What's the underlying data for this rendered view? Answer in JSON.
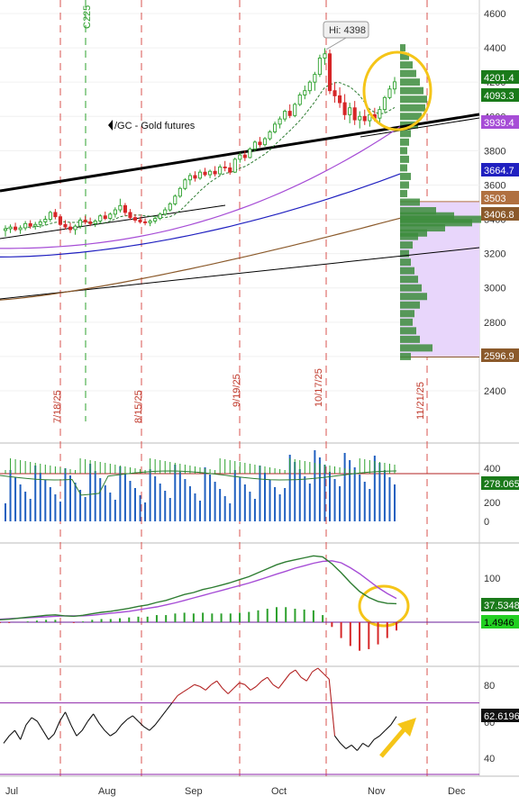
{
  "symbol_label": "/GC - Gold futures",
  "high_label": "Hi: 4398",
  "colors": {
    "bull": "#2ca02c",
    "bear": "#d62728",
    "sma_fast": "#2e7d32",
    "sma_mid": "#a64dd6",
    "sma_slow": "#2020c0",
    "sma_long": "#8b5a2b",
    "trend": "#000000",
    "volume": "#2060c0",
    "highlight": "#f5c518",
    "profile": "#3c8c3c",
    "value_area": "#c8a8f0"
  },
  "price_axis": {
    "ticks": [
      2400,
      2600,
      2800,
      3000,
      3200,
      3400,
      3600,
      3800,
      4000,
      4200,
      4400,
      4600
    ],
    "range": [
      2200,
      4650
    ]
  },
  "price_tags": [
    {
      "value": "4201.4",
      "color": "#1a7a1a"
    },
    {
      "value": "4093.3",
      "color": "#1a7a1a"
    },
    {
      "value": "3939.4",
      "color": "#a64dd6"
    },
    {
      "value": "3664.7",
      "color": "#2020c0"
    },
    {
      "value": "3503",
      "color": "#b07040"
    },
    {
      "value": "3406.8",
      "color": "#8b5a2b"
    },
    {
      "value": "2596.9",
      "color": "#8b5a2b"
    }
  ],
  "date_markers": [
    "7/18/25",
    "8/15/25",
    "9/19/25",
    "10/17/25",
    "11/21/25"
  ],
  "green_marker": "C225",
  "x_axis_labels": [
    "Jul",
    "Aug",
    "Sep",
    "Oct",
    "Nov",
    "Dec"
  ],
  "volume_panel": {
    "ticks": [
      "400",
      "200",
      "0"
    ],
    "tag": "278.065"
  },
  "macd_panel": {
    "ticks": [
      "100"
    ],
    "tags": [
      "37.5348",
      "1.4946"
    ]
  },
  "rsi_panel": {
    "ticks": [
      "80",
      "60",
      "40"
    ],
    "tag": "62.6196"
  },
  "chart_data": {
    "type": "candlestick",
    "title": "/GC - Gold futures",
    "ylim": [
      2200,
      4650
    ],
    "annotation": "Hi: 4398",
    "candles": [
      {
        "o": 3335,
        "h": 3365,
        "l": 3300,
        "c": 3345
      },
      {
        "o": 3345,
        "h": 3370,
        "l": 3320,
        "c": 3355
      },
      {
        "o": 3355,
        "h": 3380,
        "l": 3330,
        "c": 3340
      },
      {
        "o": 3340,
        "h": 3365,
        "l": 3315,
        "c": 3350
      },
      {
        "o": 3350,
        "h": 3390,
        "l": 3335,
        "c": 3375
      },
      {
        "o": 3375,
        "h": 3395,
        "l": 3345,
        "c": 3360
      },
      {
        "o": 3360,
        "h": 3385,
        "l": 3340,
        "c": 3370
      },
      {
        "o": 3370,
        "h": 3400,
        "l": 3350,
        "c": 3385
      },
      {
        "o": 3385,
        "h": 3420,
        "l": 3365,
        "c": 3400
      },
      {
        "o": 3400,
        "h": 3450,
        "l": 3385,
        "c": 3440
      },
      {
        "o": 3440,
        "h": 3460,
        "l": 3400,
        "c": 3415
      },
      {
        "o": 3415,
        "h": 3430,
        "l": 3360,
        "c": 3370
      },
      {
        "o": 3370,
        "h": 3395,
        "l": 3340,
        "c": 3355
      },
      {
        "o": 3355,
        "h": 3380,
        "l": 3320,
        "c": 3340
      },
      {
        "o": 3340,
        "h": 3370,
        "l": 3310,
        "c": 3360
      },
      {
        "o": 3360,
        "h": 3410,
        "l": 3345,
        "c": 3395
      },
      {
        "o": 3395,
        "h": 3420,
        "l": 3370,
        "c": 3385
      },
      {
        "o": 3385,
        "h": 3410,
        "l": 3360,
        "c": 3375
      },
      {
        "o": 3375,
        "h": 3400,
        "l": 3355,
        "c": 3390
      },
      {
        "o": 3390,
        "h": 3430,
        "l": 3380,
        "c": 3420
      },
      {
        "o": 3420,
        "h": 3445,
        "l": 3395,
        "c": 3405
      },
      {
        "o": 3405,
        "h": 3440,
        "l": 3395,
        "c": 3430
      },
      {
        "o": 3430,
        "h": 3470,
        "l": 3410,
        "c": 3455
      },
      {
        "o": 3455,
        "h": 3520,
        "l": 3440,
        "c": 3480
      },
      {
        "o": 3480,
        "h": 3495,
        "l": 3420,
        "c": 3440
      },
      {
        "o": 3440,
        "h": 3460,
        "l": 3395,
        "c": 3410
      },
      {
        "o": 3410,
        "h": 3430,
        "l": 3380,
        "c": 3395
      },
      {
        "o": 3395,
        "h": 3415,
        "l": 3375,
        "c": 3385
      },
      {
        "o": 3385,
        "h": 3405,
        "l": 3365,
        "c": 3380
      },
      {
        "o": 3380,
        "h": 3400,
        "l": 3360,
        "c": 3390
      },
      {
        "o": 3390,
        "h": 3420,
        "l": 3375,
        "c": 3405
      },
      {
        "o": 3405,
        "h": 3440,
        "l": 3395,
        "c": 3430
      },
      {
        "o": 3430,
        "h": 3470,
        "l": 3420,
        "c": 3455
      },
      {
        "o": 3455,
        "h": 3500,
        "l": 3445,
        "c": 3490
      },
      {
        "o": 3490,
        "h": 3545,
        "l": 3480,
        "c": 3535
      },
      {
        "o": 3535,
        "h": 3590,
        "l": 3525,
        "c": 3580
      },
      {
        "o": 3580,
        "h": 3640,
        "l": 3570,
        "c": 3630
      },
      {
        "o": 3630,
        "h": 3670,
        "l": 3600,
        "c": 3655
      },
      {
        "o": 3655,
        "h": 3680,
        "l": 3620,
        "c": 3640
      },
      {
        "o": 3640,
        "h": 3690,
        "l": 3630,
        "c": 3675
      },
      {
        "o": 3675,
        "h": 3700,
        "l": 3650,
        "c": 3660
      },
      {
        "o": 3660,
        "h": 3690,
        "l": 3640,
        "c": 3680
      },
      {
        "o": 3680,
        "h": 3710,
        "l": 3650,
        "c": 3665
      },
      {
        "o": 3665,
        "h": 3720,
        "l": 3655,
        "c": 3705
      },
      {
        "o": 3705,
        "h": 3740,
        "l": 3680,
        "c": 3700
      },
      {
        "o": 3700,
        "h": 3730,
        "l": 3660,
        "c": 3675
      },
      {
        "o": 3675,
        "h": 3760,
        "l": 3670,
        "c": 3750
      },
      {
        "o": 3750,
        "h": 3790,
        "l": 3730,
        "c": 3775
      },
      {
        "o": 3775,
        "h": 3800,
        "l": 3740,
        "c": 3760
      },
      {
        "o": 3760,
        "h": 3820,
        "l": 3755,
        "c": 3810
      },
      {
        "o": 3810,
        "h": 3860,
        "l": 3795,
        "c": 3850
      },
      {
        "o": 3850,
        "h": 3880,
        "l": 3820,
        "c": 3835
      },
      {
        "o": 3835,
        "h": 3880,
        "l": 3825,
        "c": 3870
      },
      {
        "o": 3870,
        "h": 3920,
        "l": 3860,
        "c": 3910
      },
      {
        "o": 3910,
        "h": 3970,
        "l": 3900,
        "c": 3955
      },
      {
        "o": 3955,
        "h": 4000,
        "l": 3930,
        "c": 3985
      },
      {
        "o": 3985,
        "h": 4040,
        "l": 3970,
        "c": 4030
      },
      {
        "o": 4030,
        "h": 4070,
        "l": 3990,
        "c": 4005
      },
      {
        "o": 4005,
        "h": 4080,
        "l": 3995,
        "c": 4070
      },
      {
        "o": 4070,
        "h": 4140,
        "l": 4060,
        "c": 4125
      },
      {
        "o": 4125,
        "h": 4180,
        "l": 4100,
        "c": 4150
      },
      {
        "o": 4150,
        "h": 4210,
        "l": 4130,
        "c": 4200
      },
      {
        "o": 4200,
        "h": 4260,
        "l": 4150,
        "c": 4245
      },
      {
        "o": 4245,
        "h": 4360,
        "l": 4230,
        "c": 4340
      },
      {
        "o": 4340,
        "h": 4398,
        "l": 4300,
        "c": 4365
      },
      {
        "o": 4365,
        "h": 4390,
        "l": 4130,
        "c": 4150
      },
      {
        "o": 4150,
        "h": 4200,
        "l": 4080,
        "c": 4120
      },
      {
        "o": 4120,
        "h": 4170,
        "l": 4050,
        "c": 4080
      },
      {
        "o": 4080,
        "h": 4130,
        "l": 3980,
        "c": 4010
      },
      {
        "o": 4010,
        "h": 4080,
        "l": 3960,
        "c": 4050
      },
      {
        "o": 4050,
        "h": 4090,
        "l": 3950,
        "c": 3980
      },
      {
        "o": 3980,
        "h": 4030,
        "l": 3930,
        "c": 4000
      },
      {
        "o": 4000,
        "h": 4040,
        "l": 3950,
        "c": 3975
      },
      {
        "o": 3975,
        "h": 4030,
        "l": 3940,
        "c": 4010
      },
      {
        "o": 4010,
        "h": 4050,
        "l": 3970,
        "c": 3990
      },
      {
        "o": 3990,
        "h": 4060,
        "l": 3960,
        "c": 4040
      },
      {
        "o": 4040,
        "h": 4120,
        "l": 4020,
        "c": 4110
      },
      {
        "o": 4110,
        "h": 4180,
        "l": 4100,
        "c": 4160
      },
      {
        "o": 4160,
        "h": 4230,
        "l": 4130,
        "c": 4201.4
      }
    ],
    "moving_averages": [
      {
        "start": 3300,
        "end": 4093.3
      },
      {
        "start": 3230,
        "end": 3939.4
      },
      {
        "start": 3180,
        "end": 3664.7
      },
      {
        "start": 2930,
        "end": 3406.8
      }
    ],
    "volume_levels": [
      3503,
      3406.8,
      2596.9
    ],
    "rsi": [
      48,
      52,
      55,
      50,
      58,
      62,
      60,
      55,
      50,
      53,
      60,
      65,
      58,
      52,
      55,
      60,
      64,
      59,
      55,
      52,
      54,
      58,
      61,
      63,
      60,
      57,
      55,
      58,
      62,
      66,
      70,
      74,
      76,
      78,
      80,
      79,
      77,
      80,
      82,
      78,
      75,
      78,
      81,
      80,
      77,
      79,
      82,
      84,
      80,
      78,
      82,
      86,
      88,
      84,
      82,
      87,
      89,
      86,
      83,
      52,
      48,
      45,
      47,
      44,
      48,
      46,
      50,
      52,
      55,
      58,
      62.6196
    ],
    "macd": [
      5,
      6,
      8,
      10,
      12,
      14,
      15,
      13,
      12,
      14,
      17,
      20,
      22,
      25,
      28,
      32,
      35,
      40,
      44,
      50,
      56,
      60,
      66,
      70,
      75,
      80,
      86,
      92,
      100,
      108,
      116,
      122,
      126,
      130,
      134,
      132,
      118,
      100,
      80,
      62,
      50,
      42,
      38,
      37.5348
    ],
    "signal": [
      6,
      7,
      8,
      9,
      10,
      11,
      12,
      13,
      13,
      13,
      14,
      16,
      18,
      20,
      22,
      25,
      28,
      31,
      35,
      39,
      44,
      49,
      54,
      59,
      64,
      69,
      74,
      79,
      85,
      91,
      97,
      103,
      109,
      114,
      119,
      123,
      124,
      120,
      110,
      98,
      84,
      70,
      58,
      48
    ]
  }
}
